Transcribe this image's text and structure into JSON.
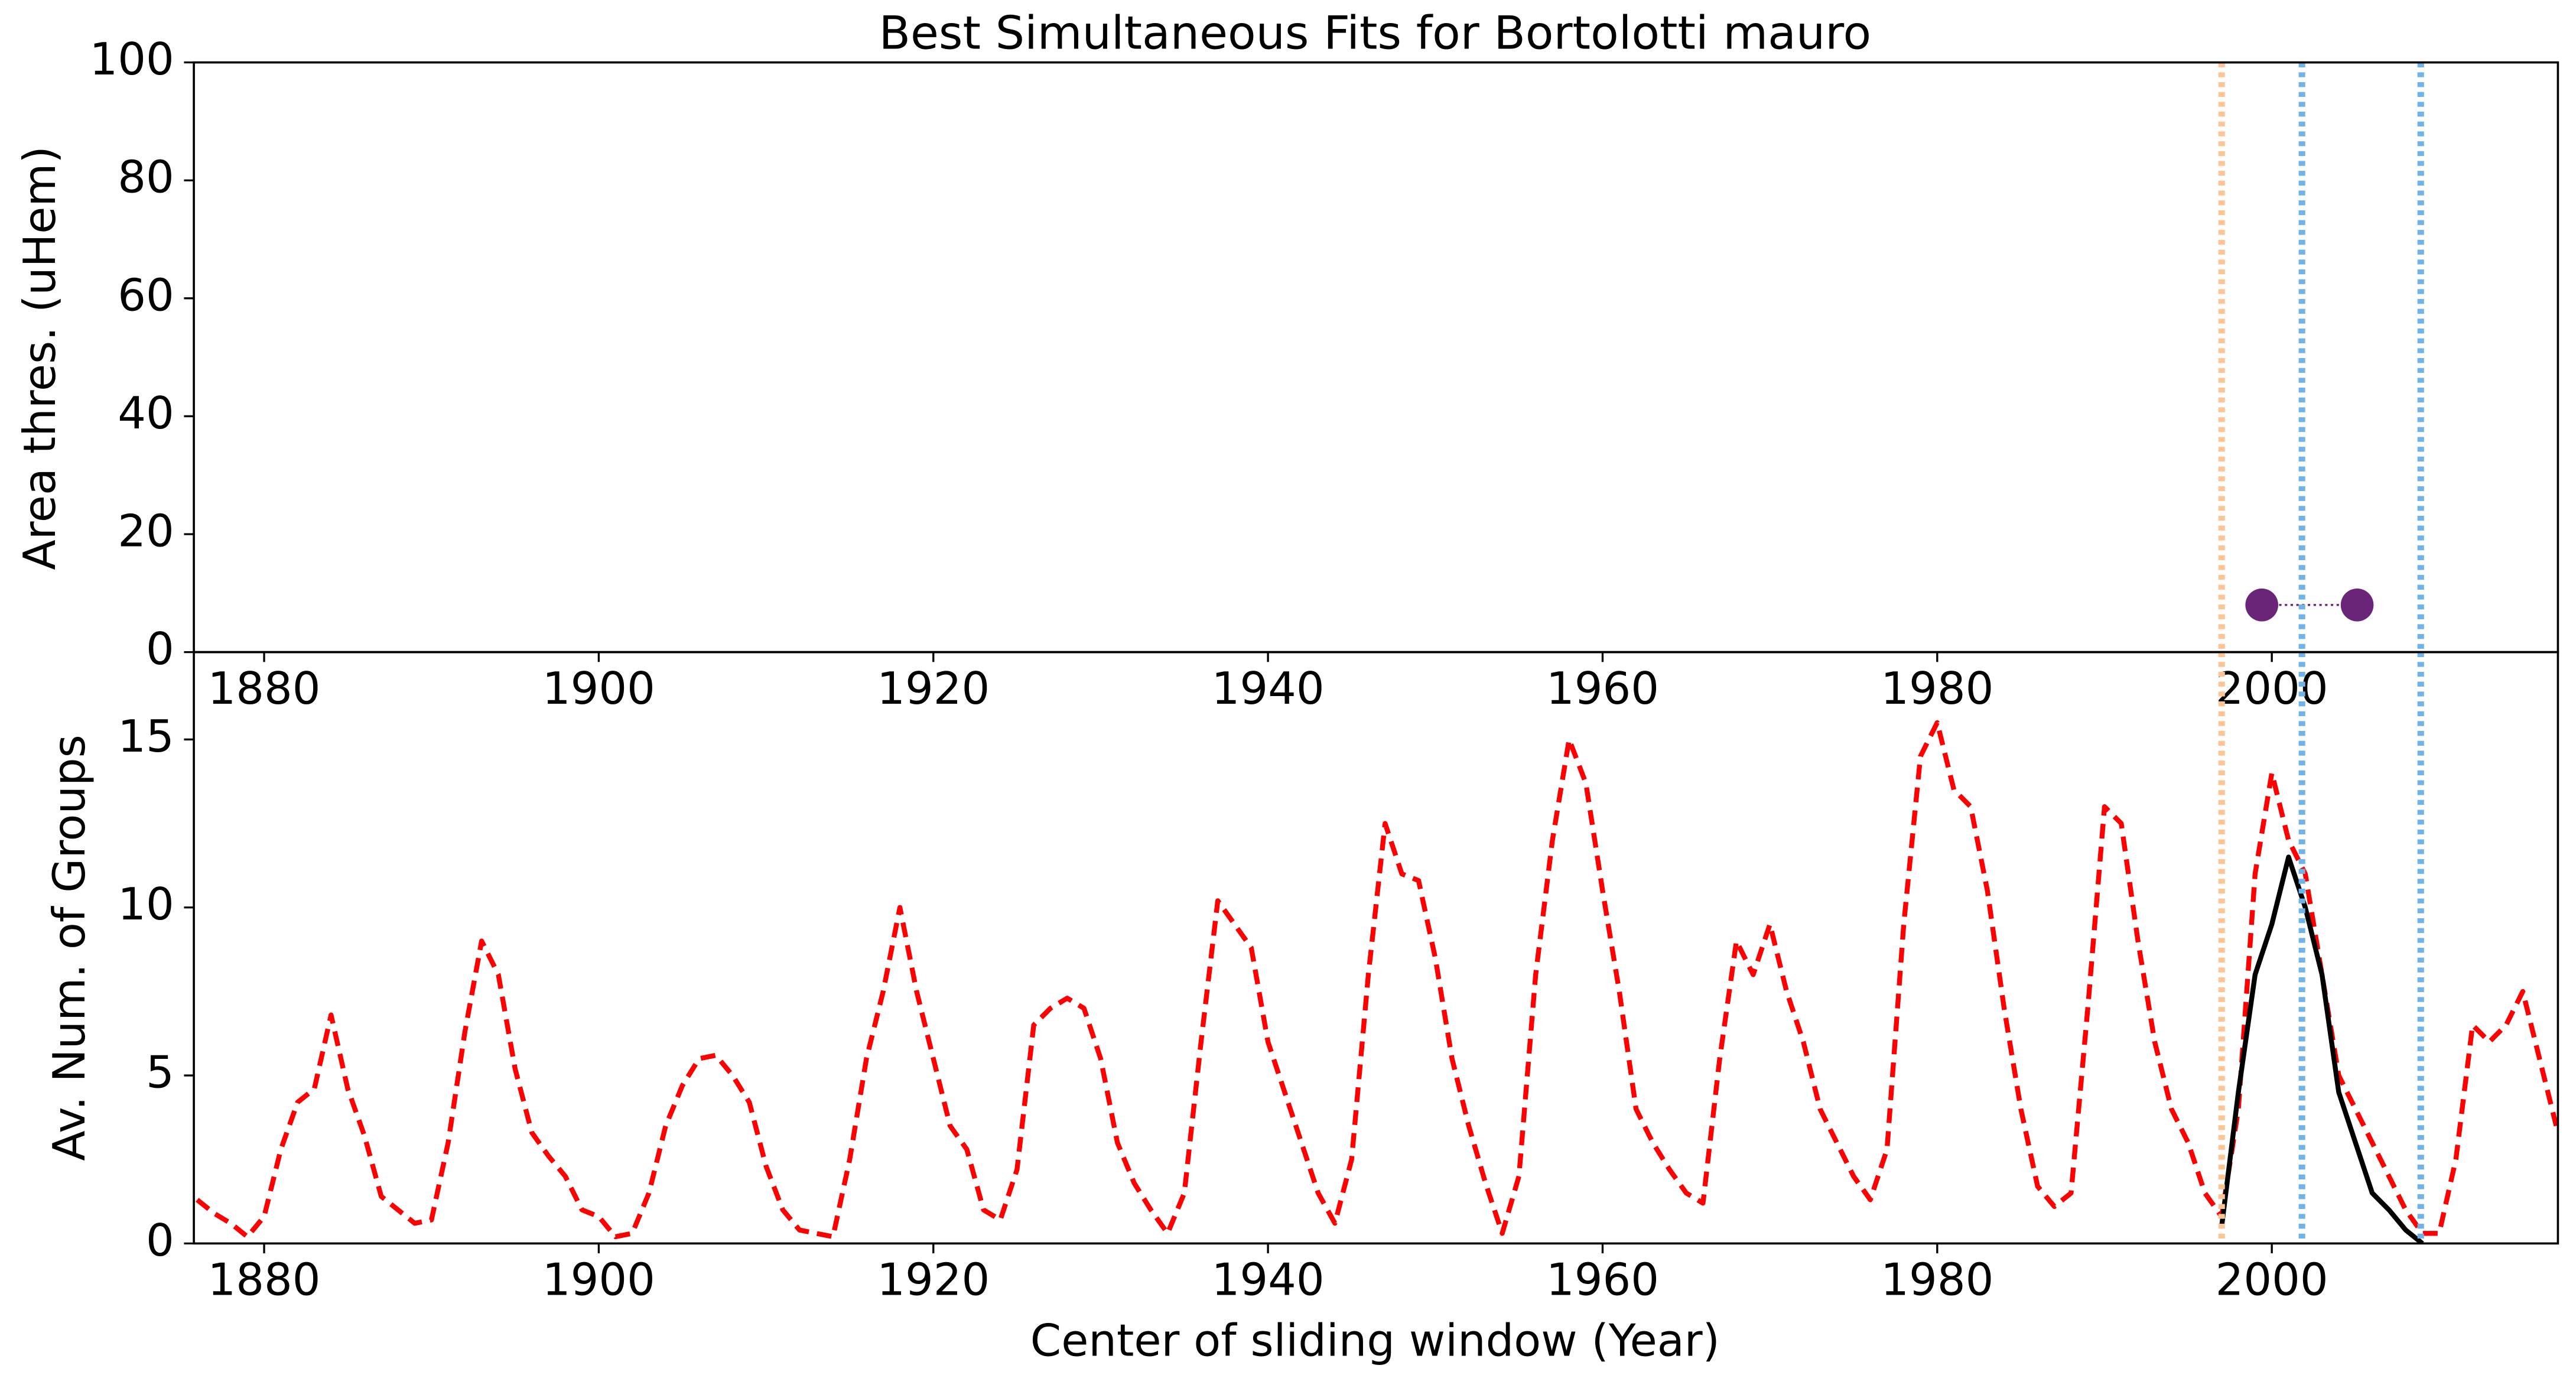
{
  "chart_data": [
    {
      "type": "scatter",
      "title": "Best Simultaneous Fits for Bortolotti mauro",
      "y_label": "Area thres. (uHem)",
      "xlim": [
        1875.8,
        2017.1
      ],
      "xticks": [
        1880,
        1900,
        1920,
        1940,
        1960,
        1980,
        2000
      ],
      "ylim": [
        0,
        100
      ],
      "yticks": [
        0,
        20,
        40,
        60,
        80,
        100
      ],
      "series": [
        {
          "color": "#6a2478",
          "x": [
            1999.4,
            2005.1
          ],
          "values": [
            8,
            8
          ]
        }
      ],
      "vlines": [
        {
          "x": 1997.0,
          "color": "#fdc593"
        },
        {
          "x": 2001.8,
          "color": "#6fb3e8"
        },
        {
          "x": 2008.9,
          "color": "#6fb3e8"
        }
      ]
    },
    {
      "type": "line",
      "x_label": "Center of sliding window (Year)",
      "y_label": "Av. Num. of Groups",
      "xlim": [
        1875.8,
        2017.1
      ],
      "xticks": [
        1880,
        1900,
        1920,
        1940,
        1960,
        1980,
        2000
      ],
      "ylim": [
        0,
        17.6
      ],
      "yticks": [
        0,
        5,
        10,
        15
      ],
      "series": [
        {
          "color": "#ff0000",
          "dash": true,
          "x": [
            1876,
            1877,
            1878,
            1879,
            1880,
            1881,
            1882,
            1883,
            1884,
            1885,
            1886,
            1887,
            1888,
            1889,
            1890,
            1891,
            1892,
            1893,
            1894,
            1895,
            1896,
            1897,
            1898,
            1899,
            1900,
            1901,
            1902,
            1903,
            1904,
            1905,
            1906,
            1907,
            1908,
            1909,
            1910,
            1911,
            1912,
            1913,
            1914,
            1915,
            1916,
            1917,
            1918,
            1919,
            1920,
            1921,
            1922,
            1923,
            1924,
            1925,
            1926,
            1927,
            1928,
            1929,
            1930,
            1931,
            1932,
            1933,
            1934,
            1935,
            1936,
            1937,
            1938,
            1939,
            1940,
            1941,
            1942,
            1943,
            1944,
            1945,
            1946,
            1947,
            1948,
            1949,
            1950,
            1951,
            1952,
            1953,
            1954,
            1955,
            1956,
            1957,
            1958,
            1959,
            1960,
            1961,
            1962,
            1963,
            1964,
            1965,
            1966,
            1967,
            1968,
            1969,
            1970,
            1971,
            1972,
            1973,
            1974,
            1975,
            1976,
            1977,
            1978,
            1979,
            1980,
            1981,
            1982,
            1983,
            1984,
            1985,
            1986,
            1987,
            1988,
            1989,
            1990,
            1991,
            1992,
            1993,
            1994,
            1995,
            1996,
            1997,
            1998,
            1999,
            2000,
            2001,
            2002,
            2003,
            2004,
            2005,
            2006,
            2007,
            2008,
            2009,
            2010,
            2011,
            2012,
            2013,
            2014,
            2015,
            2016,
            2017
          ],
          "values": [
            1.3,
            0.9,
            0.6,
            0.2,
            0.8,
            2.8,
            4.2,
            4.6,
            6.8,
            4.6,
            3.2,
            1.4,
            1.0,
            0.6,
            0.7,
            3.0,
            6.3,
            9.0,
            8.0,
            5.2,
            3.3,
            2.6,
            2.0,
            1.0,
            0.8,
            0.2,
            0.3,
            1.5,
            3.5,
            4.7,
            5.5,
            5.6,
            5.0,
            4.2,
            2.3,
            1.0,
            0.4,
            0.3,
            0.2,
            2.5,
            5.5,
            7.5,
            10.0,
            7.5,
            5.5,
            3.5,
            2.8,
            1.0,
            0.7,
            2.2,
            6.5,
            7.0,
            7.3,
            7.0,
            5.5,
            3.0,
            1.8,
            1.0,
            0.3,
            1.5,
            6.0,
            10.2,
            9.5,
            8.8,
            6.0,
            4.5,
            3.0,
            1.5,
            0.6,
            2.5,
            8.0,
            12.5,
            11.0,
            10.8,
            8.5,
            5.5,
            3.5,
            1.8,
            0.3,
            2.0,
            8.0,
            12.0,
            15.0,
            13.7,
            10.5,
            7.5,
            4.0,
            3.0,
            2.2,
            1.5,
            1.2,
            5.5,
            9.0,
            8.0,
            9.5,
            7.5,
            6.0,
            4.0,
            3.0,
            2.0,
            1.3,
            2.8,
            9.5,
            14.5,
            15.5,
            13.5,
            13.0,
            10.5,
            7.0,
            4.0,
            1.7,
            1.1,
            1.5,
            7.0,
            13.0,
            12.5,
            9.0,
            6.0,
            4.0,
            3.0,
            1.5,
            0.8,
            4.0,
            11.0,
            14.0,
            12.0,
            11.0,
            8.0,
            5.0,
            4.0,
            3.0,
            2.0,
            1.0,
            0.3,
            0.3,
            2.5,
            6.5,
            6.0,
            6.5,
            7.5,
            5.5,
            3.5
          ]
        },
        {
          "color": "#000000",
          "dash": false,
          "x": [
            1997,
            1998,
            1999,
            2000,
            2001,
            2002,
            2003,
            2004,
            2005,
            2006,
            2007,
            2008,
            2009
          ],
          "values": [
            0.5,
            4.5,
            8.0,
            9.5,
            11.5,
            10.0,
            8.0,
            4.5,
            3.0,
            1.5,
            1.0,
            0.4,
            0.0
          ]
        }
      ],
      "vlines": [
        {
          "x": 1997.0,
          "color": "#fdc593"
        },
        {
          "x": 2001.8,
          "color": "#6fb3e8"
        },
        {
          "x": 2008.9,
          "color": "#6fb3e8"
        }
      ]
    }
  ]
}
